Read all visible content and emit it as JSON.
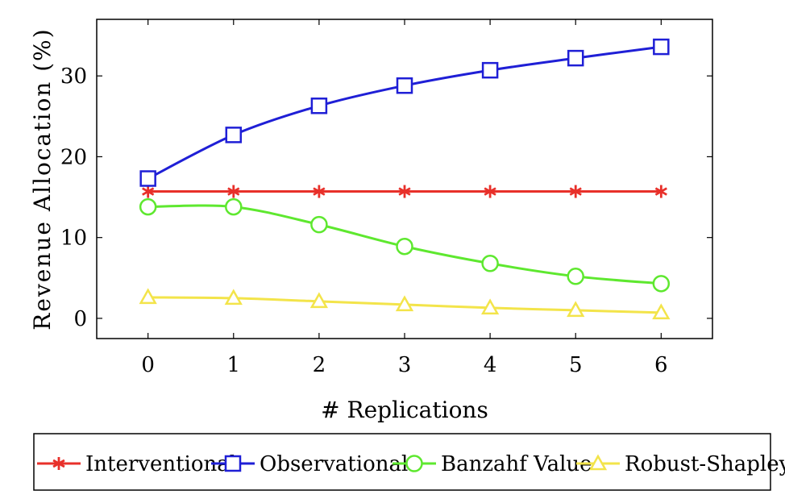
{
  "chart_data": {
    "type": "line",
    "xlabel": "# Replications",
    "ylabel": "Revenue Allocation (%)",
    "x": [
      0,
      1,
      2,
      3,
      4,
      5,
      6
    ],
    "xlim": [
      -0.6,
      6.6
    ],
    "ylim": [
      -2.5,
      37
    ],
    "xticks": [
      "0",
      "1",
      "2",
      "3",
      "4",
      "5",
      "6"
    ],
    "yticks": [
      "0",
      "10",
      "20",
      "30"
    ],
    "grid": false,
    "legend_position": "bottom",
    "series": [
      {
        "name": "Interventional",
        "color": "#e8302a",
        "marker": "asterisk",
        "values": [
          15.7,
          15.7,
          15.7,
          15.7,
          15.7,
          15.7,
          15.7
        ]
      },
      {
        "name": "Observational",
        "color": "#1f1fd6",
        "marker": "square",
        "values": [
          17.3,
          22.7,
          26.3,
          28.8,
          30.7,
          32.2,
          33.6
        ]
      },
      {
        "name": "Banzahf Value",
        "color": "#5ee82f",
        "marker": "circle",
        "values": [
          13.8,
          13.8,
          11.6,
          8.9,
          6.8,
          5.2,
          4.3
        ]
      },
      {
        "name": "Robust-Shapley",
        "color": "#f3e44a",
        "marker": "triangle",
        "values": [
          2.6,
          2.5,
          2.1,
          1.7,
          1.3,
          1.0,
          0.7
        ]
      }
    ]
  }
}
